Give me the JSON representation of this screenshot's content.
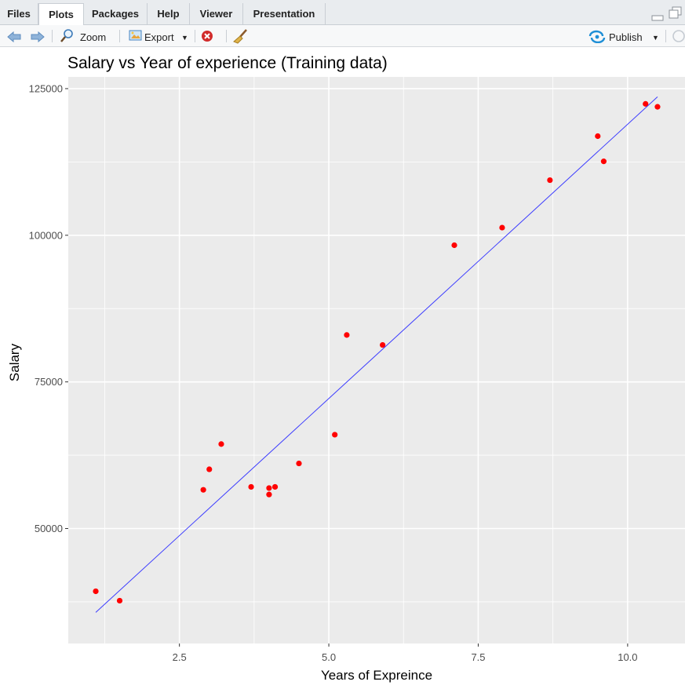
{
  "tabs": [
    {
      "label": "Files"
    },
    {
      "label": "Plots"
    },
    {
      "label": "Packages"
    },
    {
      "label": "Help"
    },
    {
      "label": "Viewer"
    },
    {
      "label": "Presentation"
    }
  ],
  "toolbar": {
    "zoom_label": "Zoom",
    "export_label": "Export",
    "publish_label": "Publish"
  },
  "colors": {
    "panel_bg": "#ebebeb",
    "grid": "#ffffff",
    "points": "#ff0000",
    "line": "#3b3bff"
  },
  "chart_data": {
    "type": "scatter",
    "title": "Salary vs Year of experience (Training data)",
    "xlabel": "Years of Expreince",
    "ylabel": "Salary",
    "xlim": [
      0.64,
      10.96
    ],
    "ylim": [
      30400,
      127000
    ],
    "xticks": [
      2.5,
      5.0,
      7.5,
      10.0
    ],
    "xtick_labels": [
      "2.5",
      "5.0",
      "7.5",
      "10.0"
    ],
    "yticks": [
      50000,
      75000,
      100000,
      125000
    ],
    "ytick_labels": [
      "50000",
      "75000",
      "100000",
      "125000"
    ],
    "grid": true,
    "series": [
      {
        "type": "scatter",
        "x": [
          1.1,
          1.5,
          2.9,
          3.0,
          3.2,
          3.7,
          4.0,
          4.0,
          4.1,
          4.5,
          5.1,
          5.3,
          5.9,
          7.1,
          7.9,
          8.7,
          9.5,
          9.6,
          10.3,
          10.5
        ],
        "y": [
          39300,
          37700,
          56600,
          60100,
          64400,
          57100,
          55800,
          56900,
          57100,
          61100,
          66000,
          83000,
          81300,
          98300,
          101300,
          109400,
          116900,
          112600,
          122400,
          121900
        ]
      },
      {
        "type": "line",
        "x": [
          1.1,
          10.5
        ],
        "y": [
          35700,
          123600
        ]
      }
    ]
  }
}
